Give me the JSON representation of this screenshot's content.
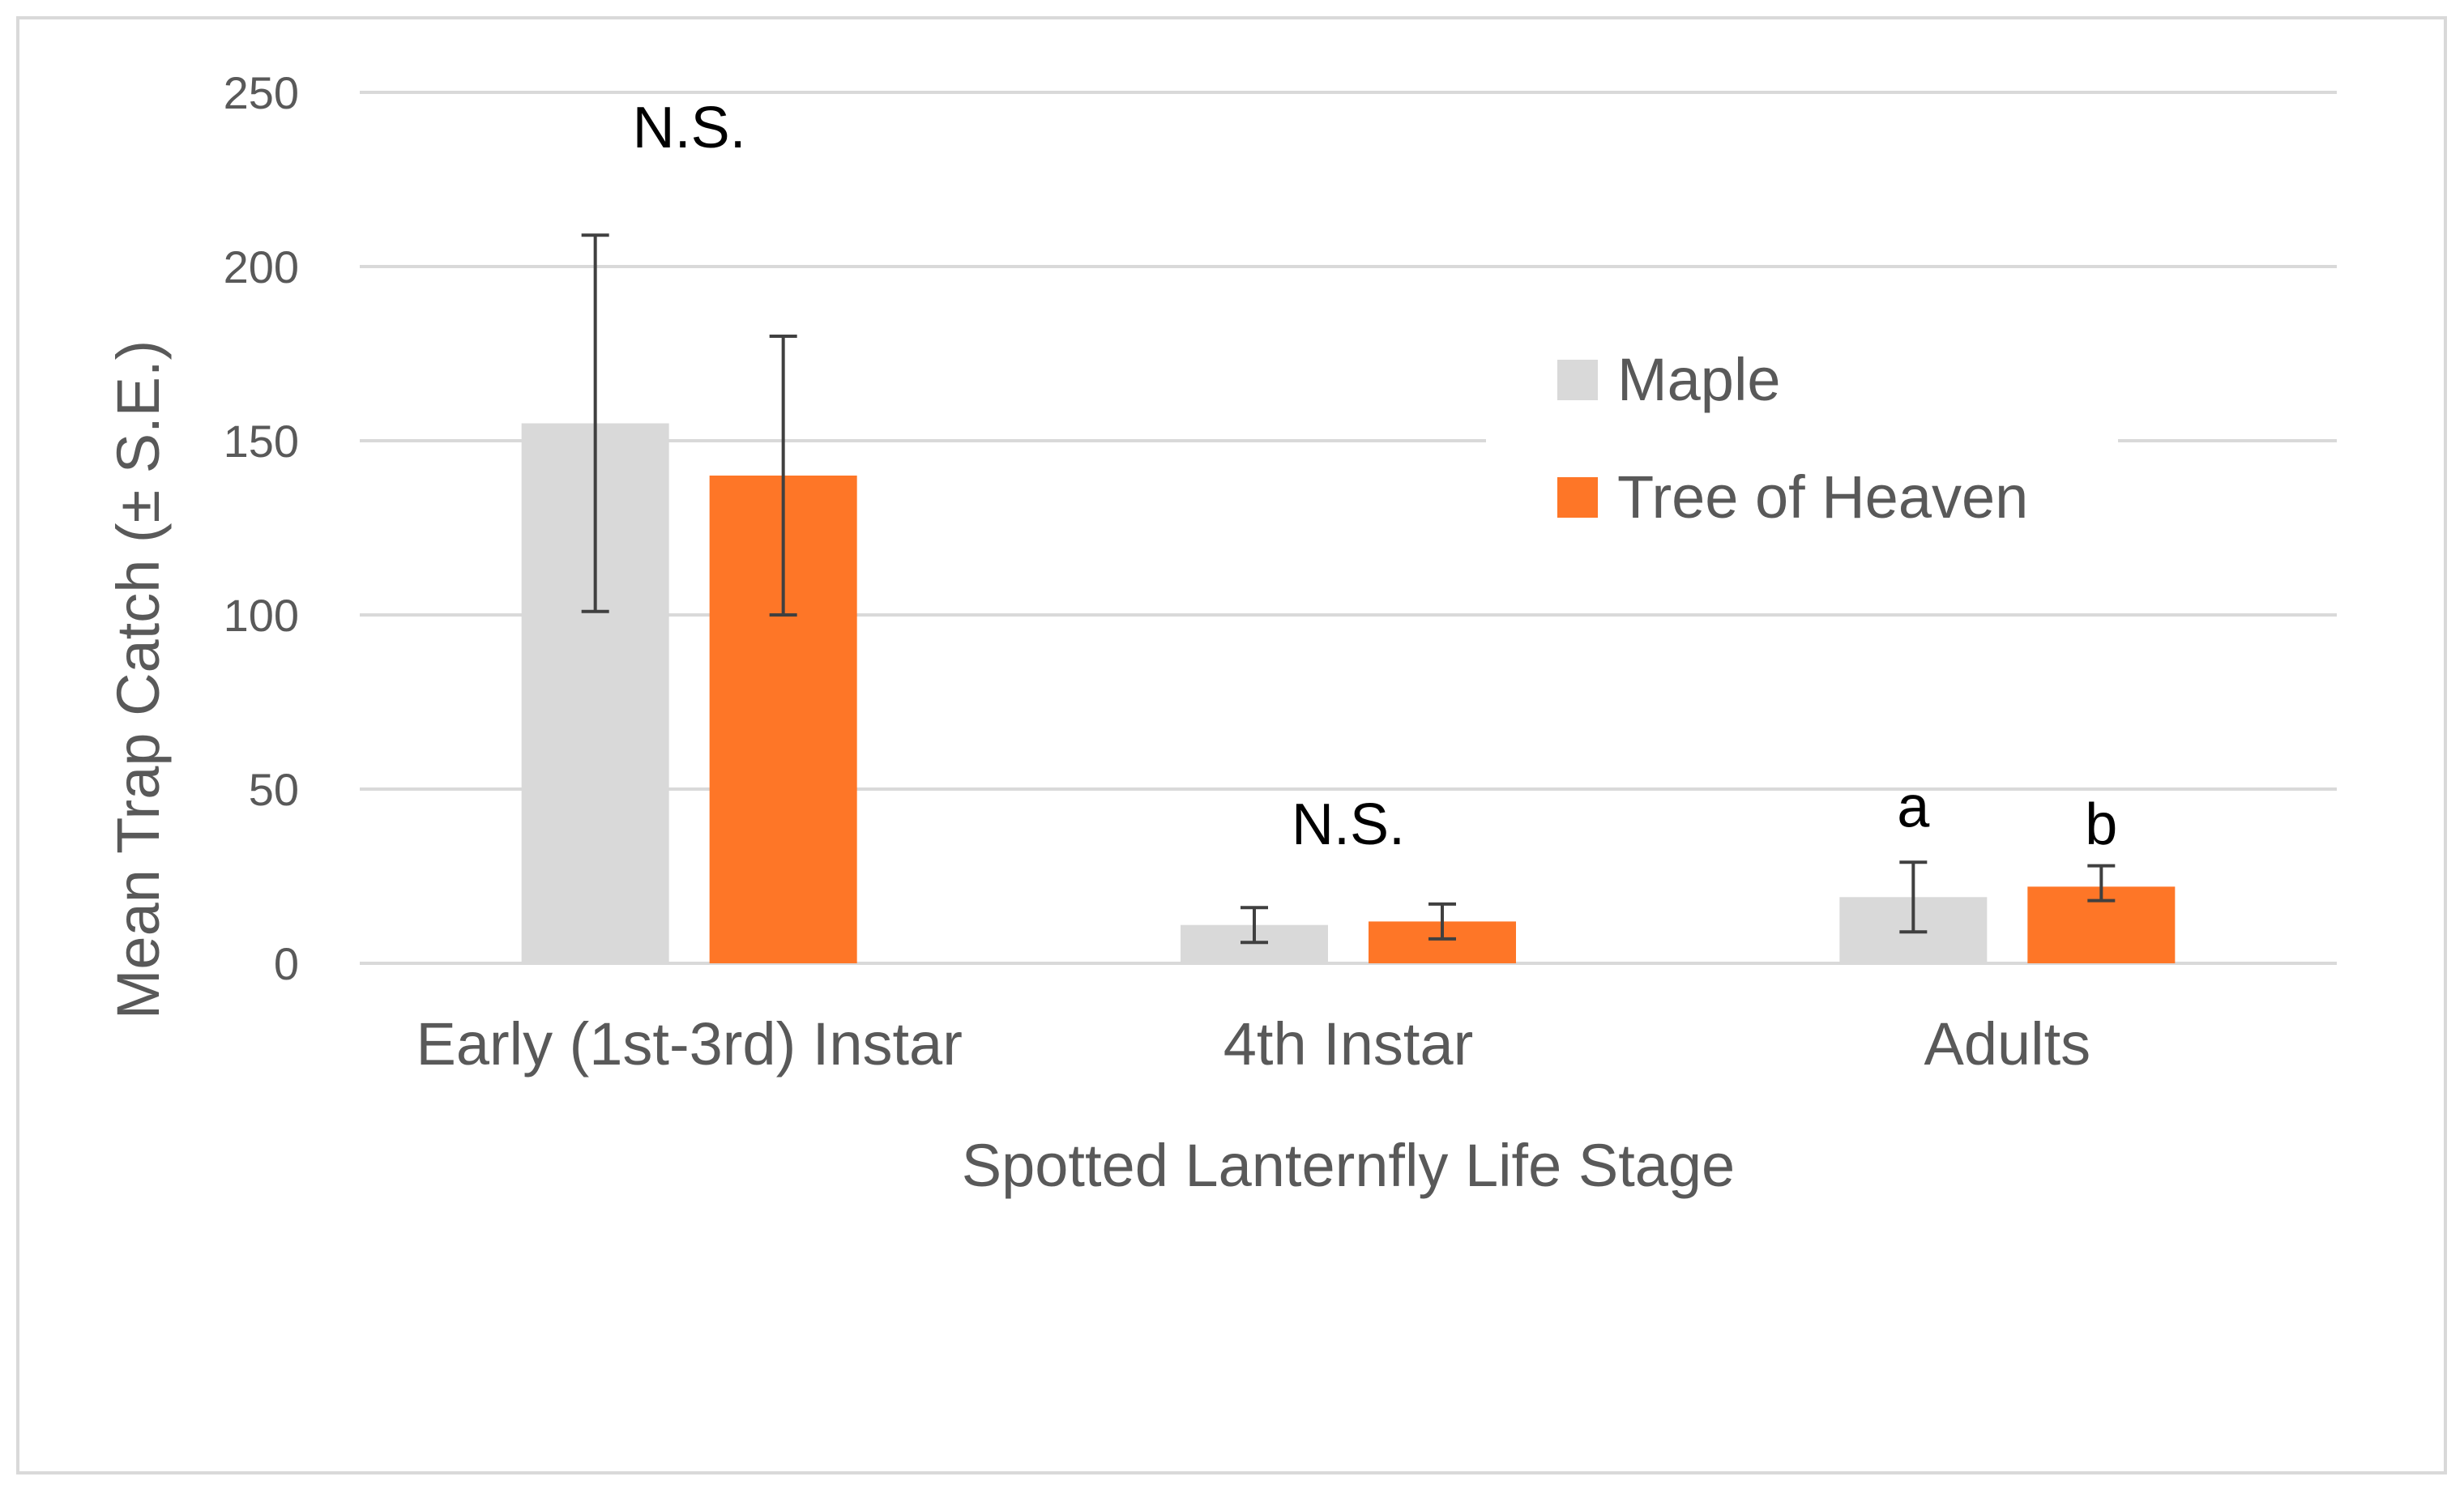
{
  "chart_data": {
    "type": "bar",
    "title": "",
    "xlabel": "Spotted Lanternfly Life Stage",
    "ylabel": "Mean Trap Catch (± S.E.)",
    "ylim": [
      0,
      250
    ],
    "yticks": [
      0,
      50,
      100,
      150,
      200,
      250
    ],
    "grid": true,
    "legend": "inside-upper-right",
    "categories": [
      "Early (1st-3rd) Instar",
      "4th Instar",
      "Adults"
    ],
    "series": [
      {
        "name": "Maple",
        "color": "#d9d9d9",
        "values": [
          155,
          11,
          19
        ],
        "error_low": [
          101,
          6,
          9
        ],
        "error_high": [
          209,
          16,
          29
        ]
      },
      {
        "name": "Tree of Heaven",
        "color": "#fe7627",
        "values": [
          140,
          12,
          22
        ],
        "error_low": [
          100,
          7,
          18
        ],
        "error_high": [
          180,
          17,
          28
        ]
      }
    ],
    "annotations": [
      {
        "text": "N.S.",
        "category": 0,
        "series": null,
        "y": 240
      },
      {
        "text": "N.S.",
        "category": 1,
        "series": null,
        "y": 40
      },
      {
        "text": "a",
        "category": 2,
        "series": 0,
        "y": 45
      },
      {
        "text": "b",
        "category": 2,
        "series": 1,
        "y": 40
      }
    ]
  }
}
